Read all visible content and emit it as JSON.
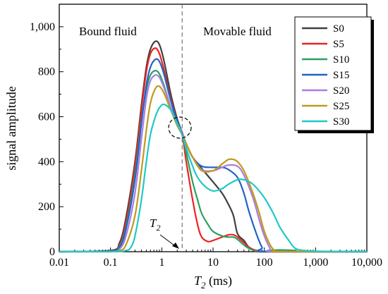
{
  "chart_data": {
    "type": "line",
    "xlabel_symbol": "T",
    "xlabel_sub": "2",
    "xlabel_unit": " (ms)",
    "ylabel": "signal amplitude",
    "xscale": "log",
    "xlim": [
      0.01,
      10000
    ],
    "ylim": [
      0,
      1100
    ],
    "x_ticks": [
      0.01,
      0.1,
      1,
      10,
      100,
      1000,
      10000
    ],
    "x_tick_labels": [
      "0.01",
      "0.1",
      "1",
      "10",
      "100",
      "1,000",
      "10,000"
    ],
    "y_ticks": [
      0,
      200,
      400,
      600,
      800,
      1000
    ],
    "y_tick_labels": [
      "0",
      "200",
      "400",
      "600",
      "800",
      "1,000"
    ],
    "legend_position": "top-right",
    "annotations": {
      "bound_fluid": "Bound fluid",
      "movable_fluid": "Movable fluid",
      "cutoff_symbol": "T",
      "cutoff_sub": "2",
      "cutoff_x": 2.5
    },
    "series": [
      {
        "name": "S0",
        "color": "#404040",
        "points": [
          [
            0.01,
            0
          ],
          [
            0.1,
            5
          ],
          [
            0.15,
            40
          ],
          [
            0.2,
            150
          ],
          [
            0.3,
            400
          ],
          [
            0.4,
            650
          ],
          [
            0.5,
            820
          ],
          [
            0.6,
            900
          ],
          [
            0.75,
            935
          ],
          [
            0.9,
            920
          ],
          [
            1.1,
            850
          ],
          [
            1.5,
            700
          ],
          [
            2,
            590
          ],
          [
            2.5,
            530
          ],
          [
            3,
            480
          ],
          [
            4,
            420
          ],
          [
            6,
            370
          ],
          [
            10,
            310
          ],
          [
            15,
            260
          ],
          [
            20,
            210
          ],
          [
            25,
            160
          ],
          [
            30,
            80
          ],
          [
            40,
            50
          ],
          [
            50,
            20
          ],
          [
            70,
            3
          ],
          [
            100,
            0
          ],
          [
            10000,
            0
          ]
        ]
      },
      {
        "name": "S5",
        "color": "#ee2222",
        "points": [
          [
            0.01,
            0
          ],
          [
            0.1,
            3
          ],
          [
            0.15,
            30
          ],
          [
            0.2,
            130
          ],
          [
            0.3,
            380
          ],
          [
            0.4,
            630
          ],
          [
            0.5,
            800
          ],
          [
            0.6,
            880
          ],
          [
            0.75,
            905
          ],
          [
            0.9,
            880
          ],
          [
            1.1,
            810
          ],
          [
            1.5,
            680
          ],
          [
            2,
            580
          ],
          [
            2.5,
            520
          ],
          [
            3,
            400
          ],
          [
            4,
            230
          ],
          [
            5,
            120
          ],
          [
            6,
            65
          ],
          [
            8,
            45
          ],
          [
            10,
            50
          ],
          [
            15,
            65
          ],
          [
            20,
            75
          ],
          [
            25,
            75
          ],
          [
            30,
            65
          ],
          [
            40,
            40
          ],
          [
            50,
            20
          ],
          [
            70,
            5
          ],
          [
            100,
            0
          ],
          [
            10000,
            0
          ]
        ]
      },
      {
        "name": "S10",
        "color": "#2aa060",
        "points": [
          [
            0.01,
            0
          ],
          [
            0.1,
            2
          ],
          [
            0.15,
            25
          ],
          [
            0.2,
            110
          ],
          [
            0.3,
            340
          ],
          [
            0.4,
            580
          ],
          [
            0.5,
            720
          ],
          [
            0.6,
            785
          ],
          [
            0.75,
            805
          ],
          [
            0.9,
            790
          ],
          [
            1.1,
            740
          ],
          [
            1.5,
            640
          ],
          [
            2,
            570
          ],
          [
            2.5,
            520
          ],
          [
            3,
            440
          ],
          [
            4,
            310
          ],
          [
            5,
            230
          ],
          [
            6,
            170
          ],
          [
            8,
            120
          ],
          [
            10,
            90
          ],
          [
            15,
            70
          ],
          [
            20,
            65
          ],
          [
            25,
            65
          ],
          [
            30,
            55
          ],
          [
            40,
            30
          ],
          [
            50,
            15
          ],
          [
            70,
            3
          ],
          [
            100,
            0
          ],
          [
            120,
            5
          ],
          [
            200,
            8
          ],
          [
            400,
            5
          ],
          [
            600,
            0
          ],
          [
            10000,
            0
          ]
        ]
      },
      {
        "name": "S15",
        "color": "#1f63c8",
        "points": [
          [
            0.01,
            0
          ],
          [
            0.1,
            2
          ],
          [
            0.15,
            20
          ],
          [
            0.2,
            100
          ],
          [
            0.3,
            320
          ],
          [
            0.4,
            570
          ],
          [
            0.5,
            740
          ],
          [
            0.6,
            820
          ],
          [
            0.75,
            855
          ],
          [
            0.9,
            845
          ],
          [
            1.1,
            790
          ],
          [
            1.5,
            670
          ],
          [
            2,
            580
          ],
          [
            2.5,
            530
          ],
          [
            3,
            480
          ],
          [
            4,
            420
          ],
          [
            6,
            380
          ],
          [
            10,
            375
          ],
          [
            15,
            375
          ],
          [
            20,
            365
          ],
          [
            30,
            330
          ],
          [
            40,
            260
          ],
          [
            50,
            180
          ],
          [
            70,
            80
          ],
          [
            90,
            20
          ],
          [
            110,
            0
          ],
          [
            10000,
            0
          ]
        ]
      },
      {
        "name": "S20",
        "color": "#a87ee0",
        "points": [
          [
            0.01,
            0
          ],
          [
            0.1,
            1
          ],
          [
            0.15,
            12
          ],
          [
            0.2,
            70
          ],
          [
            0.3,
            260
          ],
          [
            0.4,
            500
          ],
          [
            0.5,
            680
          ],
          [
            0.6,
            760
          ],
          [
            0.75,
            785
          ],
          [
            0.9,
            775
          ],
          [
            1.1,
            730
          ],
          [
            1.5,
            640
          ],
          [
            2,
            570
          ],
          [
            2.5,
            530
          ],
          [
            3,
            480
          ],
          [
            4,
            420
          ],
          [
            6,
            365
          ],
          [
            10,
            360
          ],
          [
            15,
            375
          ],
          [
            20,
            385
          ],
          [
            30,
            380
          ],
          [
            40,
            340
          ],
          [
            60,
            240
          ],
          [
            80,
            140
          ],
          [
            100,
            70
          ],
          [
            130,
            15
          ],
          [
            160,
            0
          ],
          [
            10000,
            0
          ]
        ]
      },
      {
        "name": "S25",
        "color": "#c09a1a",
        "points": [
          [
            0.01,
            0
          ],
          [
            0.1,
            0
          ],
          [
            0.15,
            5
          ],
          [
            0.2,
            30
          ],
          [
            0.3,
            160
          ],
          [
            0.4,
            360
          ],
          [
            0.5,
            540
          ],
          [
            0.6,
            660
          ],
          [
            0.75,
            725
          ],
          [
            0.9,
            735
          ],
          [
            1.1,
            705
          ],
          [
            1.5,
            630
          ],
          [
            2,
            560
          ],
          [
            2.5,
            520
          ],
          [
            3,
            480
          ],
          [
            4,
            420
          ],
          [
            6,
            360
          ],
          [
            10,
            360
          ],
          [
            15,
            390
          ],
          [
            20,
            410
          ],
          [
            25,
            410
          ],
          [
            30,
            400
          ],
          [
            40,
            360
          ],
          [
            60,
            260
          ],
          [
            80,
            170
          ],
          [
            100,
            90
          ],
          [
            130,
            30
          ],
          [
            160,
            5
          ],
          [
            200,
            0
          ],
          [
            10000,
            0
          ]
        ]
      },
      {
        "name": "S30",
        "color": "#20c8c8",
        "points": [
          [
            0.01,
            0
          ],
          [
            0.1,
            0
          ],
          [
            0.2,
            5
          ],
          [
            0.25,
            20
          ],
          [
            0.3,
            70
          ],
          [
            0.4,
            230
          ],
          [
            0.5,
            400
          ],
          [
            0.6,
            520
          ],
          [
            0.75,
            600
          ],
          [
            0.9,
            640
          ],
          [
            1.1,
            655
          ],
          [
            1.5,
            630
          ],
          [
            2,
            570
          ],
          [
            2.5,
            520
          ],
          [
            3,
            460
          ],
          [
            4,
            380
          ],
          [
            5,
            330
          ],
          [
            7,
            290
          ],
          [
            10,
            270
          ],
          [
            15,
            280
          ],
          [
            20,
            300
          ],
          [
            30,
            320
          ],
          [
            40,
            320
          ],
          [
            60,
            300
          ],
          [
            100,
            240
          ],
          [
            150,
            170
          ],
          [
            200,
            110
          ],
          [
            300,
            50
          ],
          [
            400,
            15
          ],
          [
            600,
            5
          ],
          [
            1000,
            2
          ],
          [
            5000,
            0
          ],
          [
            10000,
            0
          ]
        ]
      }
    ]
  }
}
